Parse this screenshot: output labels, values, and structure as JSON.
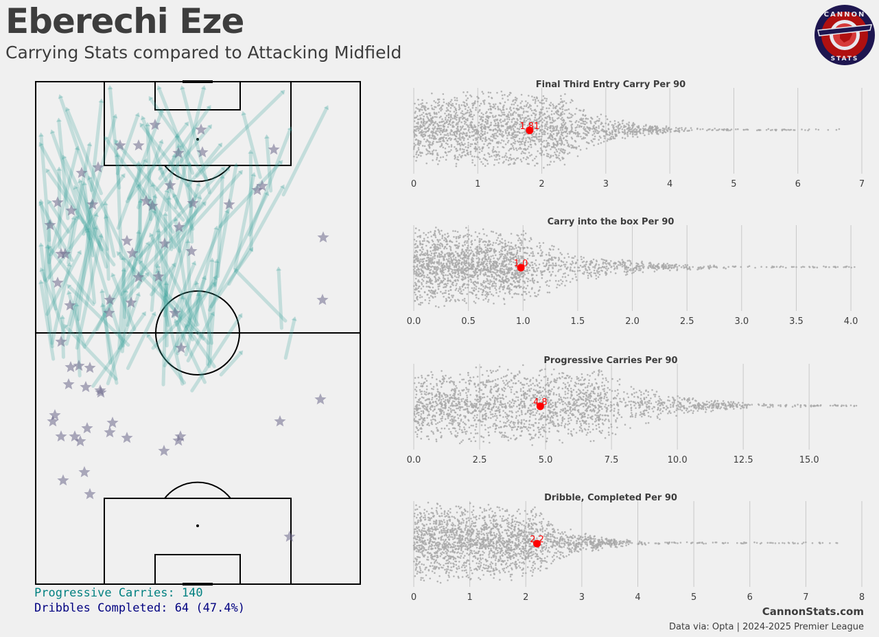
{
  "header": {
    "title": "Eberechi Eze",
    "subtitle": "Carrying Stats compared to Attacking Midfield"
  },
  "logo": {
    "top_text": "CANNON",
    "bottom_text": "STATS",
    "colors": {
      "ring": "#1e1650",
      "fill": "#b01010",
      "accent": "#d63a3a"
    }
  },
  "pitch": {
    "summary": {
      "progressive_carries": "Progressive Carries: 140",
      "dribbles_completed": "Dribbles Completed: 64 (47.4%)"
    },
    "colors": {
      "carry": "#3aa39a",
      "dribble": "#6e6a8c",
      "lines": "#000000"
    }
  },
  "chart_data": [
    {
      "type": "scatter",
      "title": "Final Third Entry Carry Per 90",
      "xlim": [
        0,
        7
      ],
      "ticks": [
        0,
        1,
        2,
        3,
        4,
        5,
        6,
        7
      ],
      "tick_labels": [
        "0",
        "1",
        "2",
        "3",
        "4",
        "5",
        "6",
        "7"
      ],
      "player_value": 1.81,
      "player_label": "1.81",
      "distribution": {
        "core_max": 2.3,
        "dense_max": 3.8,
        "tail_max": 6.7,
        "peak": 1.4
      }
    },
    {
      "type": "scatter",
      "title": "Carry into the box Per 90",
      "xlim": [
        0,
        4.1
      ],
      "ticks": [
        0,
        0.5,
        1,
        1.5,
        2,
        2.5,
        3,
        3.5,
        4
      ],
      "tick_labels": [
        "0.0",
        "0.5",
        "1.0",
        "1.5",
        "2.0",
        "2.5",
        "3.0",
        "3.5",
        "4.0"
      ],
      "player_value": 0.98,
      "player_label": "1.0",
      "distribution": {
        "core_max": 1.0,
        "dense_max": 2.3,
        "tail_max": 4.05,
        "peak": 0.2
      }
    },
    {
      "type": "scatter",
      "title": "Progressive Carries Per 90",
      "xlim": [
        0,
        17
      ],
      "ticks": [
        0,
        2.5,
        5,
        7.5,
        10,
        12.5,
        15
      ],
      "tick_labels": [
        "0.0",
        "2.5",
        "5.0",
        "7.5",
        "10.0",
        "12.5",
        "15.0"
      ],
      "player_value": 4.8,
      "player_label": "4.8",
      "distribution": {
        "core_max": 7.0,
        "dense_max": 12.0,
        "tail_max": 16.8,
        "peak": 3.5
      }
    },
    {
      "type": "scatter",
      "title": "Dribble, Completed Per 90",
      "xlim": [
        0,
        8
      ],
      "ticks": [
        0,
        1,
        2,
        3,
        4,
        5,
        6,
        7,
        8
      ],
      "tick_labels": [
        "0",
        "1",
        "2",
        "3",
        "4",
        "5",
        "6",
        "7",
        "8"
      ],
      "player_value": 2.2,
      "player_label": "2.2",
      "distribution": {
        "core_max": 2.1,
        "dense_max": 3.6,
        "tail_max": 7.7,
        "peak": 0.6
      }
    }
  ],
  "footer": {
    "brand": "CannonStats.com",
    "source": "Data via: Opta | 2024-2025 Premier League"
  }
}
